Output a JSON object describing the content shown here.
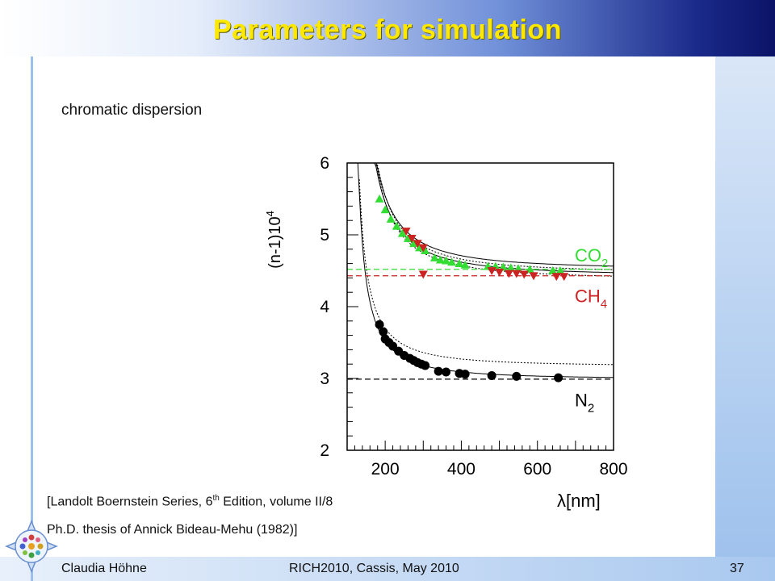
{
  "slide": {
    "title": "Parameters for simulation",
    "subtitle": "chromatic dispersion",
    "reference_line1_prefix": "[Landolt Boernstein Series, 6",
    "reference_line1_sup": "th",
    "reference_line1_suffix": " Edition, volume II/8",
    "reference_line2": "Ph.D. thesis of Annick Bideau-Mehu (1982)]",
    "footer_left": "Claudia Höhne",
    "footer_center": "RICH2010, Cassis, May 2010",
    "page_number": "37",
    "title_color": "#ffe800",
    "logo": "rich-detector-logo-icon"
  },
  "chart_data": {
    "type": "scatter",
    "xlabel": "λ[nm]",
    "ylabel_main": "(n-1)10",
    "ylabel_sup": "4",
    "xlim": [
      100,
      800
    ],
    "ylim": [
      2,
      6
    ],
    "xticks": [
      "200",
      "400",
      "600",
      "800"
    ],
    "yticks": [
      "2",
      "3",
      "4",
      "5",
      "6"
    ],
    "series": [
      {
        "name": "CO2",
        "label_main": "CO",
        "label_sub": "2",
        "color": "#33dd33",
        "marker": "triangle-up",
        "asymptote": 4.52,
        "points": [
          [
            185,
            5.5
          ],
          [
            200,
            5.35
          ],
          [
            215,
            5.22
          ],
          [
            230,
            5.12
          ],
          [
            245,
            5.02
          ],
          [
            260,
            4.95
          ],
          [
            275,
            4.88
          ],
          [
            290,
            4.82
          ],
          [
            305,
            4.78
          ],
          [
            330,
            4.68
          ],
          [
            345,
            4.65
          ],
          [
            360,
            4.64
          ],
          [
            375,
            4.62
          ],
          [
            395,
            4.6
          ],
          [
            410,
            4.58
          ],
          [
            470,
            4.56
          ],
          [
            490,
            4.56
          ],
          [
            510,
            4.55
          ],
          [
            530,
            4.54
          ],
          [
            550,
            4.53
          ],
          [
            580,
            4.52
          ],
          [
            640,
            4.5
          ],
          [
            660,
            4.5
          ]
        ]
      },
      {
        "name": "CH4",
        "label_main": "CH",
        "label_sub": "4",
        "color": "#cc2222",
        "marker": "triangle-down",
        "asymptote": 4.43,
        "points": [
          [
            255,
            5.05
          ],
          [
            270,
            4.95
          ],
          [
            285,
            4.88
          ],
          [
            300,
            4.82
          ],
          [
            300,
            4.45
          ],
          [
            480,
            4.5
          ],
          [
            500,
            4.48
          ],
          [
            525,
            4.46
          ],
          [
            545,
            4.46
          ],
          [
            565,
            4.45
          ],
          [
            590,
            4.43
          ],
          [
            650,
            4.42
          ],
          [
            670,
            4.42
          ]
        ]
      },
      {
        "name": "N2",
        "label_main": "N",
        "label_sub": "2",
        "color": "#000000",
        "marker": "circle",
        "asymptote": 2.99,
        "points": [
          [
            185,
            3.75
          ],
          [
            195,
            3.65
          ],
          [
            200,
            3.55
          ],
          [
            210,
            3.5
          ],
          [
            220,
            3.45
          ],
          [
            235,
            3.38
          ],
          [
            250,
            3.32
          ],
          [
            265,
            3.28
          ],
          [
            275,
            3.25
          ],
          [
            285,
            3.22
          ],
          [
            295,
            3.2
          ],
          [
            305,
            3.18
          ],
          [
            340,
            3.1
          ],
          [
            360,
            3.09
          ],
          [
            395,
            3.07
          ],
          [
            410,
            3.06
          ],
          [
            480,
            3.04
          ],
          [
            545,
            3.03
          ],
          [
            655,
            3.01
          ]
        ]
      }
    ]
  }
}
